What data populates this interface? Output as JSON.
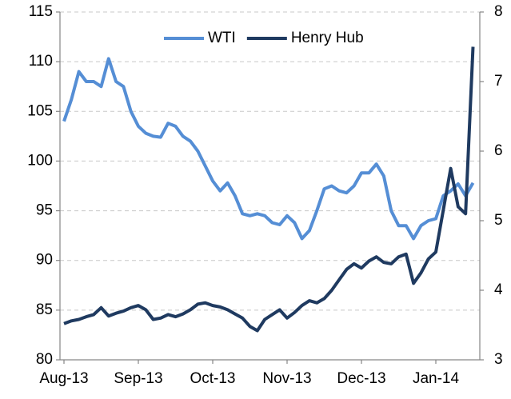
{
  "chart_data": {
    "type": "line",
    "categories": [
      "Aug-13",
      null,
      null,
      null,
      null,
      null,
      null,
      null,
      null,
      null,
      "Sep-13",
      null,
      null,
      null,
      null,
      null,
      null,
      null,
      null,
      null,
      "Oct-13",
      null,
      null,
      null,
      null,
      null,
      null,
      null,
      null,
      null,
      "Nov-13",
      null,
      null,
      null,
      null,
      null,
      null,
      null,
      null,
      null,
      "Dec-13",
      null,
      null,
      null,
      null,
      null,
      null,
      null,
      null,
      null,
      "Jan-14",
      null,
      null,
      null,
      null,
      null
    ],
    "series": [
      {
        "name": "WTI",
        "color": "#558ed5",
        "axis": "y",
        "values": [
          104,
          106.2,
          109,
          108,
          108,
          107.5,
          110.3,
          108,
          107.5,
          105,
          103.5,
          102.8,
          102.5,
          102.4,
          103.8,
          103.5,
          102.5,
          102,
          101,
          99.5,
          98,
          97,
          97.8,
          96.5,
          94.7,
          94.5,
          94.7,
          94.5,
          93.8,
          93.6,
          94.5,
          93.8,
          92.2,
          93,
          95,
          97.2,
          97.5,
          97,
          96.8,
          97.5,
          98.8,
          98.8,
          99.7,
          98.5,
          95,
          93.5,
          93.5,
          92.2,
          93.5,
          94,
          94.2,
          96.5,
          97,
          97.7,
          96.5,
          97.8
        ]
      },
      {
        "name": "Henry Hub",
        "color": "#1f3a60",
        "axis": "y2",
        "values": [
          3.52,
          3.56,
          3.58,
          3.62,
          3.65,
          3.75,
          3.63,
          3.67,
          3.7,
          3.75,
          3.78,
          3.72,
          3.58,
          3.6,
          3.65,
          3.62,
          3.66,
          3.72,
          3.8,
          3.82,
          3.78,
          3.76,
          3.72,
          3.66,
          3.6,
          3.48,
          3.42,
          3.58,
          3.65,
          3.72,
          3.6,
          3.68,
          3.78,
          3.85,
          3.82,
          3.88,
          4,
          4.15,
          4.3,
          4.38,
          4.32,
          4.42,
          4.48,
          4.4,
          4.38,
          4.48,
          4.52,
          4.1,
          4.25,
          4.45,
          4.55,
          5.15,
          5.75,
          5.2,
          5.1,
          7.5
        ]
      }
    ],
    "ylim": [
      80,
      115
    ],
    "yticks": [
      80,
      85,
      90,
      95,
      100,
      105,
      110,
      115
    ],
    "y2lim": [
      3,
      8
    ],
    "y2ticks": [
      3,
      4,
      5,
      6,
      7,
      8
    ],
    "grid": true,
    "legend": "top"
  }
}
